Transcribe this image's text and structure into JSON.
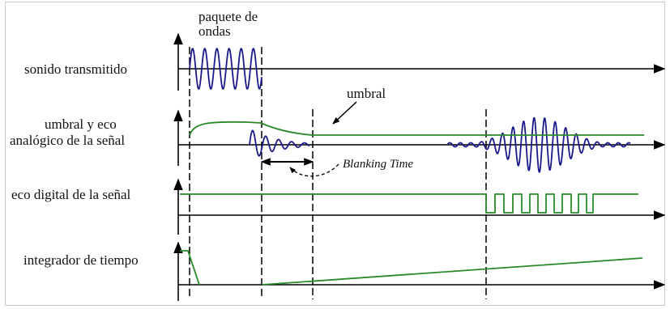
{
  "labels": {
    "row1": "sonido transmitido",
    "row2_line1": "umbral y eco",
    "row2_line2": "analógico de la señal",
    "row3": "eco digital de la señal",
    "row4": "integrador de tiempo"
  },
  "annotations": {
    "packet_line1": "paquete de",
    "packet_line2": "ondas",
    "threshold": "umbral",
    "blanking": "Blanking Time"
  },
  "colors": {
    "axis": "#000000",
    "wave": "#1a1a8c",
    "signal": "#2a8a2a"
  }
}
